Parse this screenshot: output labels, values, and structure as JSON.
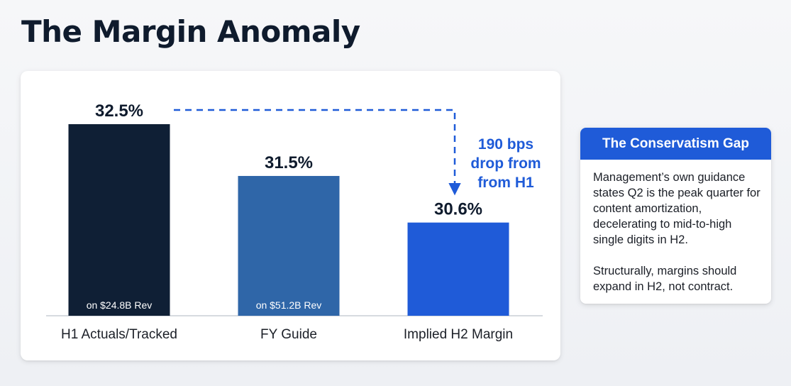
{
  "page": {
    "title": "The Margin Anomaly"
  },
  "colors": {
    "h1_bar": "#0f1f35",
    "fy_bar": "#2f66a8",
    "h2_bar": "#1f5bd8",
    "accent": "#1f5bd8",
    "axis": "#c9ced6"
  },
  "chart_data": {
    "type": "bar",
    "title": "",
    "xlabel": "",
    "ylabel": "",
    "categories": [
      "H1 Actuals/Tracked",
      "FY Guide",
      "Implied H2 Margin"
    ],
    "values": [
      32.5,
      31.5,
      30.6
    ],
    "value_labels": [
      "32.5%",
      "31.5%",
      "30.6%"
    ],
    "bar_annotations": [
      "on $24.8B Rev",
      "on $51.2B Rev",
      ""
    ],
    "ylim": [
      28.8,
      32.5
    ],
    "grid": false,
    "annotation": {
      "from": "H1 Actuals/Tracked",
      "to": "Implied H2 Margin",
      "style": "dashed-arrow",
      "text_lines": [
        "190 bps",
        "drop from",
        "from H1"
      ]
    }
  },
  "callout": {
    "header": "The Conservatism Gap",
    "paragraphs": [
      "Management’s own guidance states Q2 is the peak quarter for content amortization, decelerating to mid-to-high single digits in H2.",
      "Structurally, margins should expand in H2, not contract."
    ]
  }
}
